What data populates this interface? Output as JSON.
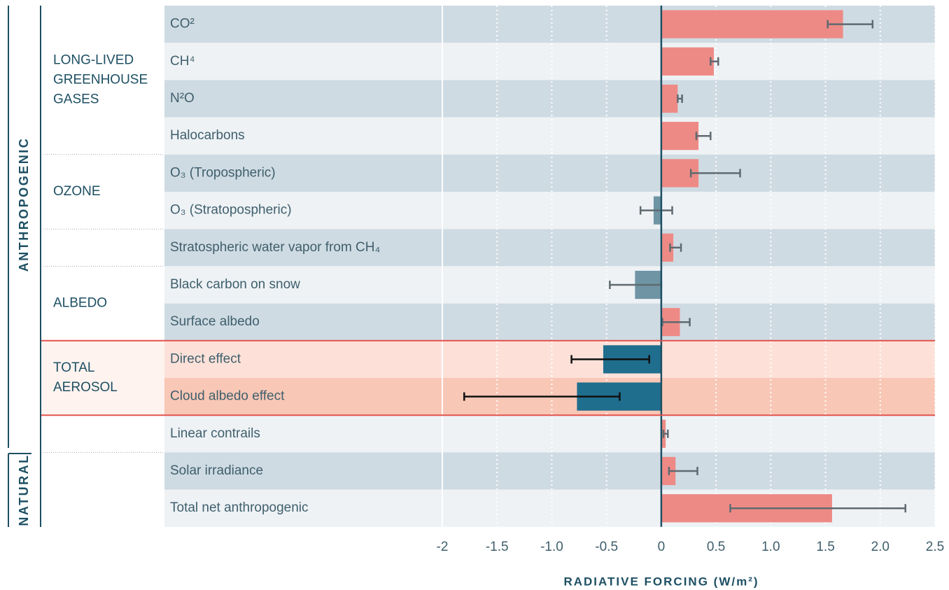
{
  "chart_data": {
    "type": "hbar",
    "x_label": "RADIATIVE FORCING (W/m²)",
    "categories": [
      "CO²",
      "CH⁴",
      "N²O",
      "Halocarbons",
      "O₃ (Tropospheric)",
      "O₃ (Stratopospheric)",
      "Stratospheric water vapor from CH₄",
      "Black carbon on snow",
      "Surface albedo",
      "Direct effect",
      "Cloud albedo effect",
      "Linear contrails",
      "Solar irradiance",
      "Total net anthropogenic"
    ],
    "series": [
      {
        "values": [
          1.66,
          0.48,
          0.15,
          0.34,
          0.34,
          -0.07,
          0.11,
          -0.24,
          0.17,
          -0.53,
          -0.77,
          0.04,
          0.13,
          1.56
        ]
      }
    ],
    "errors": [
      [
        1.52,
        1.93
      ],
      [
        0.45,
        0.52
      ],
      [
        0.15,
        0.19
      ],
      [
        0.32,
        0.45
      ],
      [
        0.27,
        0.72
      ],
      [
        -0.19,
        0.1
      ],
      [
        0.08,
        0.18
      ],
      [
        -0.47,
        0
      ],
      [
        0.01,
        0.26
      ],
      [
        -0.82,
        -0.11
      ],
      [
        -1.8,
        -0.38
      ],
      [
        0.02,
        0.06
      ],
      [
        0.07,
        0.33
      ],
      [
        0.63,
        2.23
      ]
    ],
    "bar_colors": [
      "#ee8a85",
      "#ee8a85",
      "#ee8a85",
      "#ee8a85",
      "#ee8a85",
      "#6f95a5",
      "#ee8a85",
      "#6f95a5",
      "#ee8a85",
      "#1f6e8e",
      "#1f6e8e",
      "#ee8a85",
      "#ee8a85",
      "#ee8a85"
    ],
    "error_colors": [
      "#5f6a70",
      "#5f6a70",
      "#5f6a70",
      "#5f6a70",
      "#5f6a70",
      "#5f6a70",
      "#5f6a70",
      "#5f6a70",
      "#5f6a70",
      "#111111",
      "#111111",
      "#5f6a70",
      "#5f6a70",
      "#5f6a70"
    ],
    "groups": [
      {
        "lines": [
          "LONG-LIVED",
          "GREENHOUSE",
          "GASES"
        ]
      },
      {
        "lines": [
          "OZONE"
        ]
      },
      {
        "lines": [
          "ALBEDO"
        ]
      },
      {
        "lines": [
          "TOTAL",
          "AEROSOL"
        ]
      }
    ],
    "sections": [
      "ANTHROPOGENIC",
      "NATURAL"
    ],
    "xlim": [
      -2,
      2.5
    ],
    "xticks": [
      -2,
      -1.5,
      {
        "value": -1,
        "label": "-1.0"
      },
      -0.5,
      0,
      0.5,
      {
        "value": 1,
        "label": "1.0"
      },
      1.5,
      {
        "value": 2,
        "label": "2.0"
      },
      2.5
    ],
    "grid": true
  }
}
